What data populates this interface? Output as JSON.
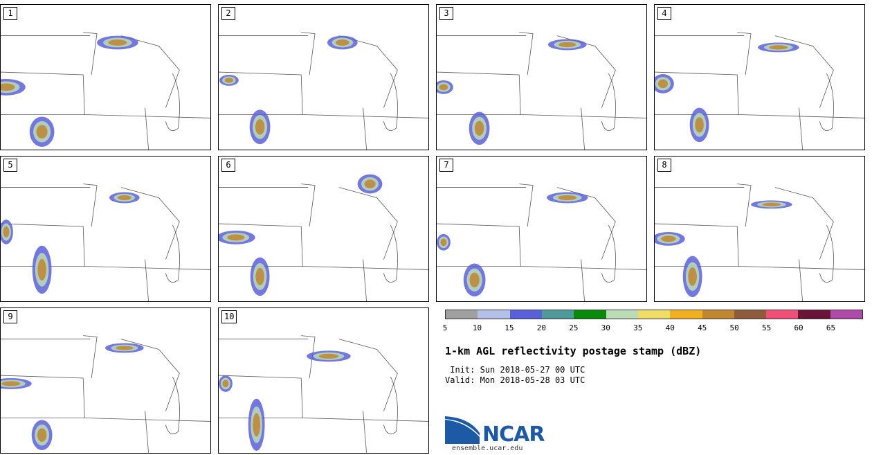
{
  "panels": [
    {
      "id": "1"
    },
    {
      "id": "2"
    },
    {
      "id": "3"
    },
    {
      "id": "4"
    },
    {
      "id": "5"
    },
    {
      "id": "6"
    },
    {
      "id": "7"
    },
    {
      "id": "8"
    },
    {
      "id": "9"
    },
    {
      "id": "10"
    }
  ],
  "colorbar": {
    "colors": [
      "#a0a0a0",
      "#b4c0e8",
      "#5a60d8",
      "#4f9a9a",
      "#0a8a0a",
      "#bcdcb8",
      "#eedd66",
      "#f0b020",
      "#c08630",
      "#8e5c3c",
      "#f05078",
      "#6a1438",
      "#b04aa8"
    ],
    "labels": [
      "5",
      "10",
      "15",
      "20",
      "25",
      "30",
      "35",
      "40",
      "45",
      "50",
      "55",
      "60",
      "65"
    ]
  },
  "title": "1-km AGL reflectivity postage stamp (dBZ)",
  "init": " Init: Sun 2018-05-27 00 UTC",
  "valid": "Valid: Mon 2018-05-28 03 UTC",
  "logo": {
    "text": "NCAR",
    "site": "ensemble.ucar.edu",
    "color": "#1d5aa6"
  }
}
